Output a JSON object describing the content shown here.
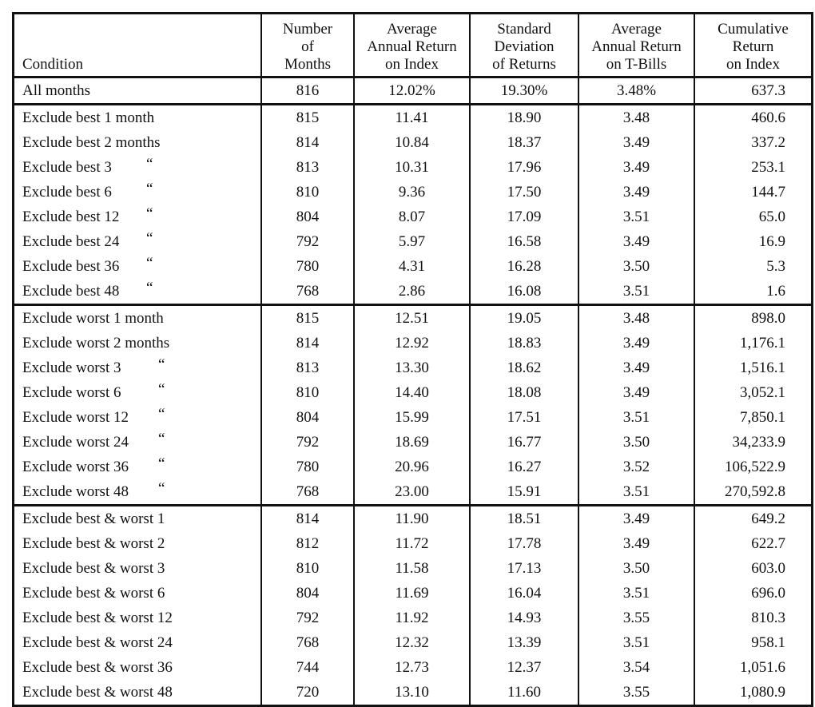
{
  "table": {
    "header": [
      [
        "Condition"
      ],
      [
        "Number",
        "of",
        "Months"
      ],
      [
        "Average",
        "Annual Return",
        "on Index"
      ],
      [
        "Standard",
        "Deviation",
        "of Returns"
      ],
      [
        "Average",
        "Annual Return",
        "on T-Bills"
      ],
      [
        "Cumulative",
        "Return",
        "on Index"
      ]
    ],
    "groups": [
      [
        {
          "condition": "All months",
          "values": [
            "816",
            "12.02%",
            "19.30%",
            "3.48%",
            "637.3"
          ]
        }
      ],
      [
        {
          "condition": "Exclude best 1 month",
          "values": [
            "815",
            "11.41",
            "18.90",
            "3.48",
            "460.6"
          ]
        },
        {
          "condition": "Exclude best 2 months",
          "values": [
            "814",
            "10.84",
            "18.37",
            "3.49",
            "337.2"
          ]
        },
        {
          "condition": "Exclude best 3",
          "ditto": "“",
          "values": [
            "813",
            "10.31",
            "17.96",
            "3.49",
            "253.1"
          ]
        },
        {
          "condition": "Exclude best 6",
          "ditto": "“",
          "values": [
            "810",
            "9.36",
            "17.50",
            "3.49",
            "144.7"
          ]
        },
        {
          "condition": "Exclude best 12",
          "ditto": "“",
          "values": [
            "804",
            "8.07",
            "17.09",
            "3.51",
            "65.0"
          ]
        },
        {
          "condition": "Exclude best 24",
          "ditto": "“",
          "values": [
            "792",
            "5.97",
            "16.58",
            "3.49",
            "16.9"
          ]
        },
        {
          "condition": "Exclude best 36",
          "ditto": "“",
          "values": [
            "780",
            "4.31",
            "16.28",
            "3.50",
            "5.3"
          ]
        },
        {
          "condition": "Exclude best 48",
          "ditto": "“",
          "values": [
            "768",
            "2.86",
            "16.08",
            "3.51",
            "1.6"
          ]
        }
      ],
      [
        {
          "condition": "Exclude worst 1 month",
          "values": [
            "815",
            "12.51",
            "19.05",
            "3.48",
            "898.0"
          ]
        },
        {
          "condition": "Exclude worst 2 months",
          "values": [
            "814",
            "12.92",
            "18.83",
            "3.49",
            "1,176.1"
          ]
        },
        {
          "condition": "Exclude worst 3",
          "ditto": "“",
          "values": [
            "813",
            "13.30",
            "18.62",
            "3.49",
            "1,516.1"
          ]
        },
        {
          "condition": "Exclude worst 6",
          "ditto": "“",
          "values": [
            "810",
            "14.40",
            "18.08",
            "3.49",
            "3,052.1"
          ]
        },
        {
          "condition": "Exclude worst 12",
          "ditto": "“",
          "values": [
            "804",
            "15.99",
            "17.51",
            "3.51",
            "7,850.1"
          ]
        },
        {
          "condition": "Exclude worst 24",
          "ditto": "“",
          "values": [
            "792",
            "18.69",
            "16.77",
            "3.50",
            "34,233.9"
          ]
        },
        {
          "condition": "Exclude worst 36",
          "ditto": "“",
          "values": [
            "780",
            "20.96",
            "16.27",
            "3.52",
            "106,522.9"
          ]
        },
        {
          "condition": "Exclude worst 48",
          "ditto": "“",
          "values": [
            "768",
            "23.00",
            "15.91",
            "3.51",
            "270,592.8"
          ]
        }
      ],
      [
        {
          "condition": "Exclude best & worst 1",
          "values": [
            "814",
            "11.90",
            "18.51",
            "3.49",
            "649.2"
          ]
        },
        {
          "condition": "Exclude best & worst 2",
          "values": [
            "812",
            "11.72",
            "17.78",
            "3.49",
            "622.7"
          ]
        },
        {
          "condition": "Exclude best & worst 3",
          "values": [
            "810",
            "11.58",
            "17.13",
            "3.50",
            "603.0"
          ]
        },
        {
          "condition": "Exclude best & worst 6",
          "values": [
            "804",
            "11.69",
            "16.04",
            "3.51",
            "696.0"
          ]
        },
        {
          "condition": "Exclude best & worst 12",
          "values": [
            "792",
            "11.92",
            "14.93",
            "3.55",
            "810.3"
          ]
        },
        {
          "condition": "Exclude best & worst 24",
          "values": [
            "768",
            "12.32",
            "13.39",
            "3.51",
            "958.1"
          ]
        },
        {
          "condition": "Exclude best & worst 36",
          "values": [
            "744",
            "12.73",
            "12.37",
            "3.54",
            "1,051.6"
          ]
        },
        {
          "condition": "Exclude best & worst 48",
          "values": [
            "720",
            "13.10",
            "11.60",
            "3.55",
            "1,080.9"
          ]
        }
      ]
    ]
  }
}
